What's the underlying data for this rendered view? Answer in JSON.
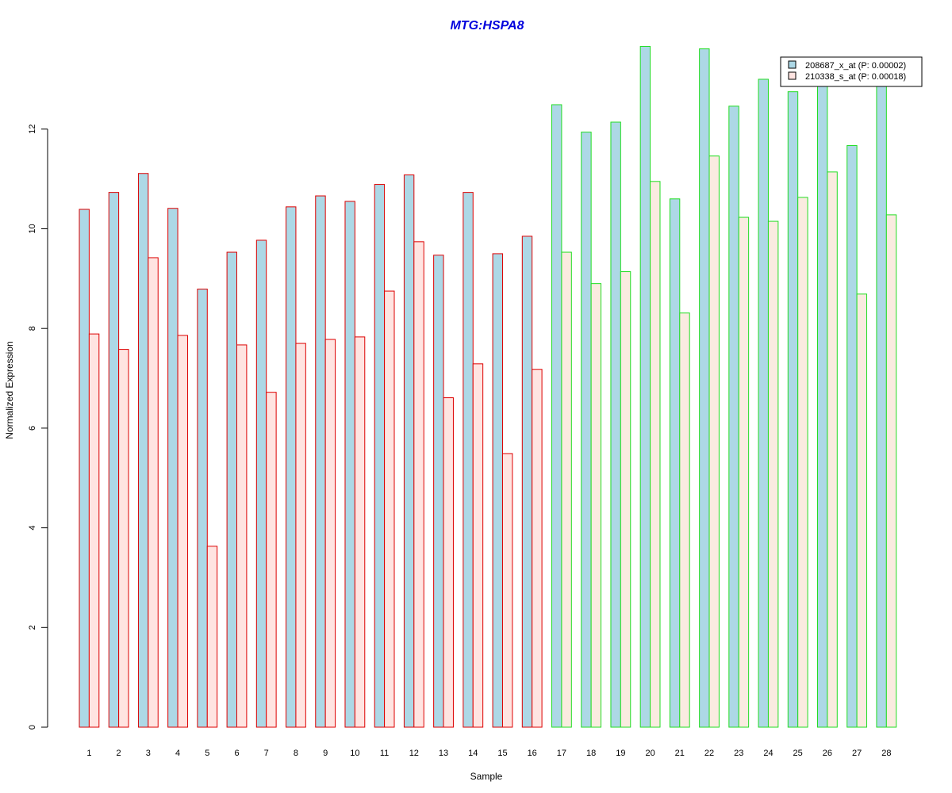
{
  "chart_data": {
    "type": "bar",
    "title": "MTG:HSPA8",
    "xlabel": "Sample",
    "ylabel": "Normalized Expression",
    "ylim": [
      0,
      13.8
    ],
    "yticks": [
      0,
      2,
      4,
      6,
      8,
      10,
      12
    ],
    "categories": [
      "1",
      "2",
      "3",
      "4",
      "5",
      "6",
      "7",
      "8",
      "9",
      "10",
      "11",
      "12",
      "13",
      "14",
      "15",
      "16",
      "17",
      "18",
      "19",
      "20",
      "21",
      "22",
      "23",
      "24",
      "25",
      "26",
      "27",
      "28"
    ],
    "group_border_colors": [
      "#dd0000",
      "#dd0000",
      "#dd0000",
      "#dd0000",
      "#dd0000",
      "#dd0000",
      "#dd0000",
      "#dd0000",
      "#dd0000",
      "#dd0000",
      "#dd0000",
      "#dd0000",
      "#dd0000",
      "#dd0000",
      "#dd0000",
      "#dd0000",
      "#22dd22",
      "#22dd22",
      "#22dd22",
      "#22dd22",
      "#22dd22",
      "#22dd22",
      "#22dd22",
      "#22dd22",
      "#22dd22",
      "#22dd22",
      "#22dd22",
      "#22dd22"
    ],
    "series": [
      {
        "name": "208687_x_at (P: 0.00002)",
        "color": "#add8e6",
        "values": [
          10.39,
          10.73,
          11.11,
          10.41,
          8.79,
          9.53,
          9.77,
          10.44,
          10.66,
          10.55,
          10.89,
          11.08,
          9.47,
          10.73,
          9.5,
          9.85,
          12.49,
          11.94,
          12.14,
          13.66,
          10.6,
          13.61,
          12.46,
          13.0,
          12.75,
          13.2,
          11.67,
          13.0
        ]
      },
      {
        "name": "210338_s_at (P: 0.00018)",
        "color": "#ffe4e1",
        "values": [
          7.89,
          7.58,
          9.42,
          7.86,
          3.63,
          7.67,
          6.72,
          7.7,
          7.78,
          7.83,
          8.75,
          9.74,
          6.61,
          7.29,
          5.49,
          7.18,
          9.53,
          8.9,
          9.14,
          10.95,
          8.31,
          11.46,
          10.23,
          10.15,
          10.63,
          11.14,
          8.69,
          10.28
        ]
      }
    ],
    "legend_position": "top-right",
    "title_color": "#0000dd",
    "alt_second_color": "#faebe0"
  }
}
